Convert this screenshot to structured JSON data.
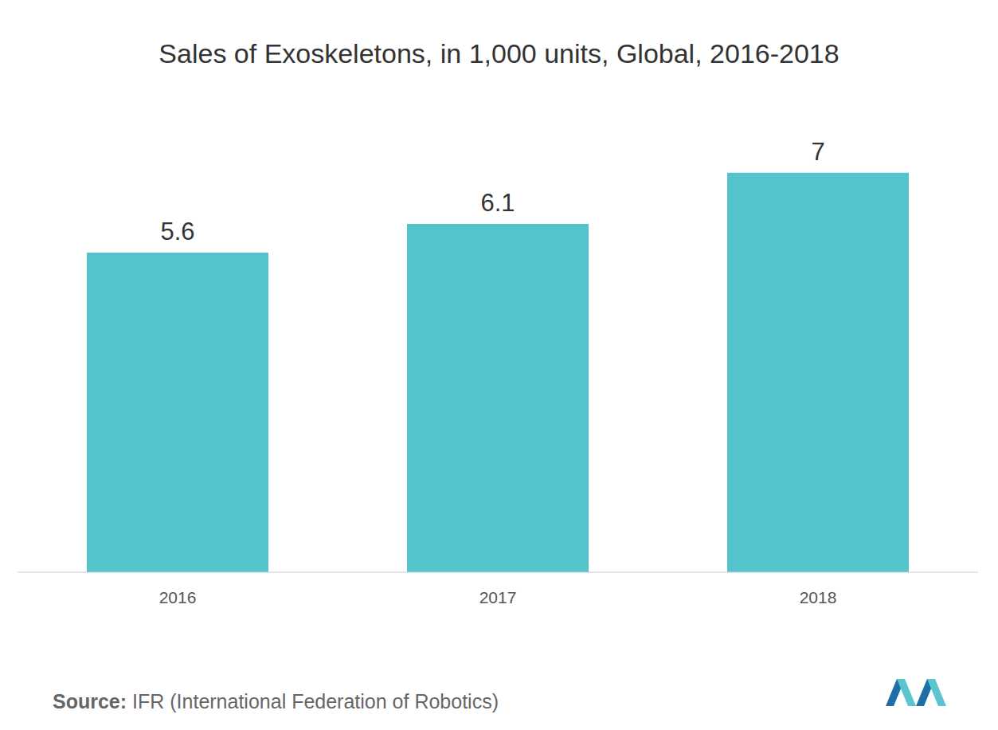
{
  "chart_data": {
    "type": "bar",
    "title": "Sales of Exoskeletons, in 1,000 units, Global, 2016-2018",
    "categories": [
      "2016",
      "2017",
      "2018"
    ],
    "values": [
      5.6,
      6.1,
      7
    ],
    "color": "#53c4cb",
    "ylim": [
      0,
      8
    ],
    "data_labels": true,
    "tick_labels": "x",
    "grid": false,
    "source_label": "Source:",
    "source": "IFR (International Federation of Robotics)"
  }
}
